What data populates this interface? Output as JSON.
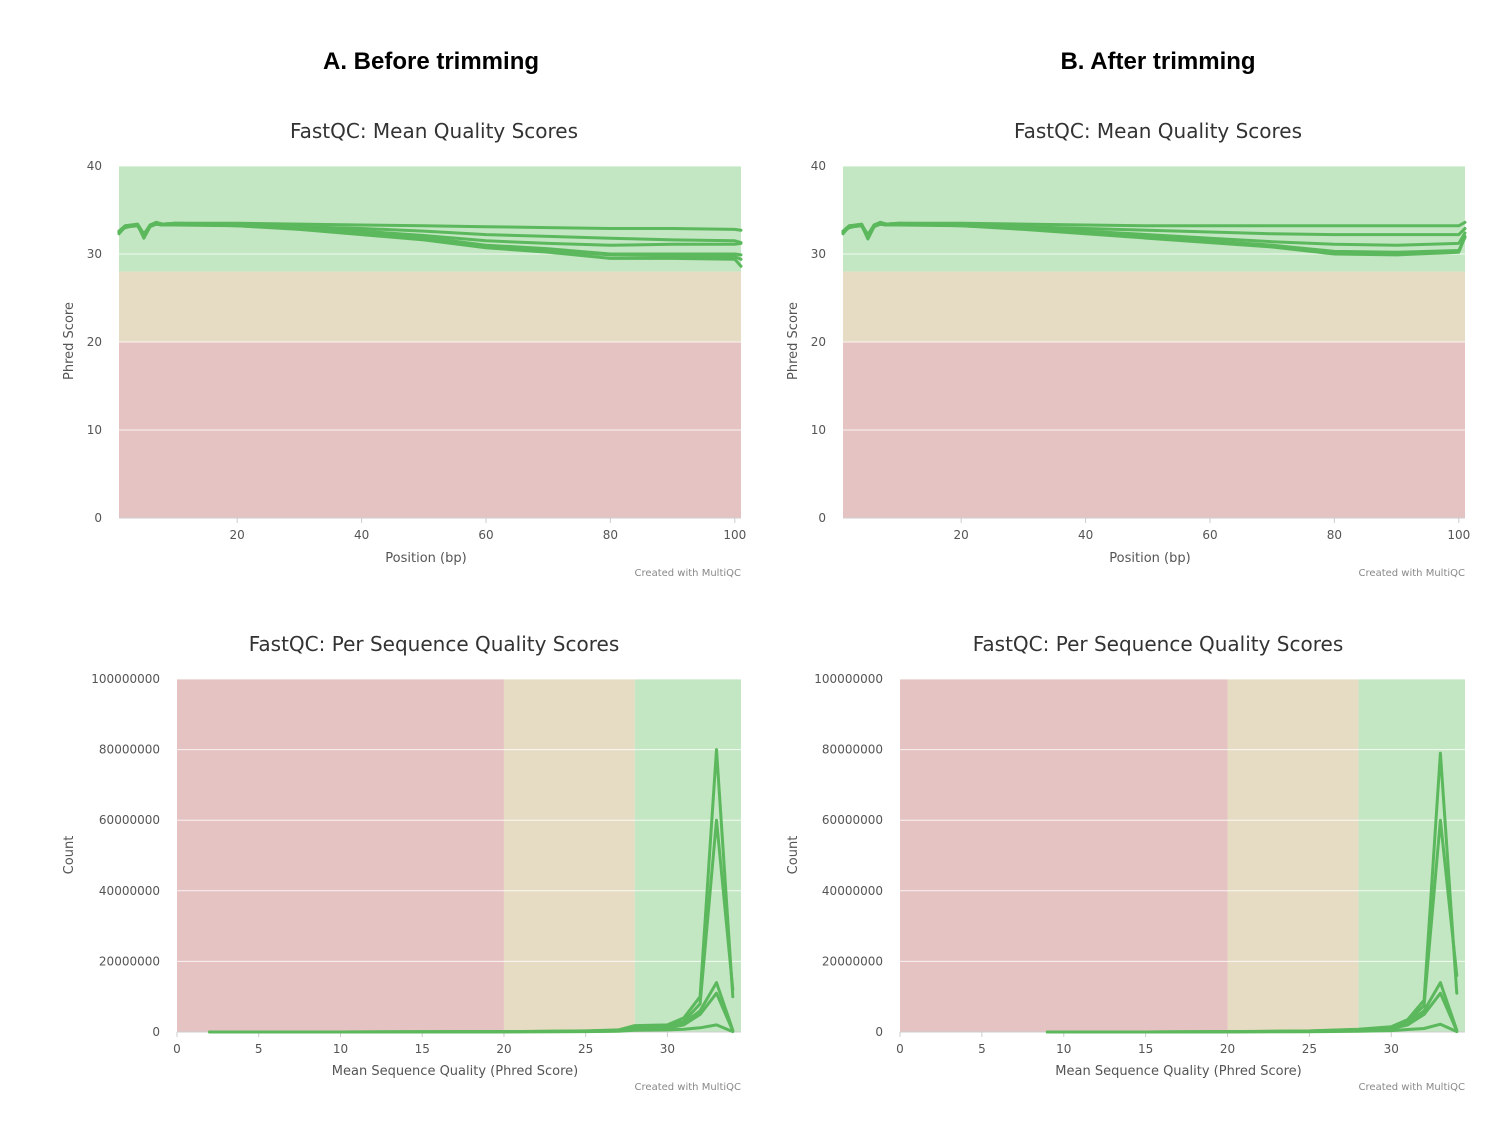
{
  "headings": {
    "a": "A. Before trimming",
    "b": "B. After trimming"
  },
  "colors": {
    "good": "#c3e6c3",
    "warn": "#e6dcc3",
    "bad": "#e6c3c3",
    "line": "#5cb85c",
    "grid": "#ffffff"
  },
  "credit": "Created with MultiQC",
  "chart_data": [
    {
      "id": "a_mean",
      "type": "line",
      "title": "FastQC: Mean Quality Scores",
      "xlabel": "Position (bp)",
      "ylabel": "Phred Score",
      "xlim": [
        1,
        101
      ],
      "ylim": [
        0,
        40
      ],
      "xticks": [
        "20",
        "40",
        "60",
        "80",
        "100"
      ],
      "yticks": [
        "0",
        "10",
        "20",
        "30",
        "40"
      ],
      "bands": {
        "axis": "y",
        "bad": [
          0,
          20
        ],
        "warn": [
          20,
          28
        ],
        "good": [
          28,
          40
        ]
      },
      "series": [
        {
          "x": [
            1,
            2,
            4,
            5,
            6,
            7,
            8,
            10,
            20,
            30,
            40,
            50,
            60,
            70,
            80,
            90,
            100,
            101
          ],
          "y": [
            32.5,
            33.2,
            33.4,
            32.2,
            33.3,
            33.6,
            33.4,
            33.5,
            33.5,
            33.4,
            33.3,
            33.2,
            33.1,
            33.0,
            32.9,
            32.9,
            32.8,
            32.7
          ]
        },
        {
          "x": [
            1,
            2,
            4,
            5,
            6,
            7,
            8,
            10,
            20,
            30,
            40,
            50,
            60,
            70,
            80,
            90,
            100,
            101
          ],
          "y": [
            32.4,
            33.1,
            33.2,
            32.0,
            33.2,
            33.4,
            33.3,
            33.4,
            33.3,
            33.1,
            32.9,
            32.6,
            32.2,
            32.0,
            31.8,
            31.6,
            31.5,
            31.3
          ]
        },
        {
          "x": [
            1,
            2,
            4,
            5,
            6,
            7,
            8,
            10,
            20,
            30,
            40,
            50,
            60,
            70,
            80,
            90,
            100,
            101
          ],
          "y": [
            32.6,
            33.2,
            33.3,
            32.1,
            33.3,
            33.5,
            33.4,
            33.5,
            33.4,
            33.0,
            32.6,
            32.1,
            31.5,
            31.2,
            31.0,
            31.1,
            31.1,
            31.2
          ]
        },
        {
          "x": [
            1,
            2,
            4,
            5,
            6,
            7,
            8,
            10,
            20,
            30,
            40,
            50,
            60,
            70,
            80,
            90,
            100,
            101
          ],
          "y": [
            32.5,
            33.0,
            33.3,
            31.8,
            33.1,
            33.4,
            33.3,
            33.3,
            33.2,
            32.9,
            32.4,
            31.8,
            30.9,
            30.4,
            29.9,
            29.8,
            29.7,
            29.4
          ]
        },
        {
          "x": [
            1,
            2,
            4,
            5,
            6,
            7,
            8,
            10,
            20,
            30,
            40,
            50,
            60,
            70,
            80,
            90,
            100,
            101
          ],
          "y": [
            32.3,
            33.1,
            33.2,
            32.0,
            33.2,
            33.4,
            33.3,
            33.4,
            33.2,
            32.8,
            32.2,
            31.6,
            30.7,
            30.2,
            29.5,
            29.5,
            29.4,
            28.6
          ]
        },
        {
          "x": [
            1,
            2,
            4,
            5,
            6,
            7,
            8,
            10,
            20,
            30,
            40,
            50,
            60,
            70,
            80,
            90,
            100,
            101
          ],
          "y": [
            32.6,
            33.1,
            33.3,
            32.3,
            33.2,
            33.5,
            33.4,
            33.4,
            33.3,
            32.9,
            32.4,
            31.9,
            31.0,
            30.6,
            30.0,
            30.0,
            30.0,
            29.9
          ]
        }
      ]
    },
    {
      "id": "b_mean",
      "type": "line",
      "title": "FastQC: Mean Quality Scores",
      "xlabel": "Position (bp)",
      "ylabel": "Phred Score",
      "xlim": [
        1,
        101
      ],
      "ylim": [
        0,
        40
      ],
      "xticks": [
        "20",
        "40",
        "60",
        "80",
        "100"
      ],
      "yticks": [
        "0",
        "10",
        "20",
        "30",
        "40"
      ],
      "bands": {
        "axis": "y",
        "bad": [
          0,
          20
        ],
        "warn": [
          20,
          28
        ],
        "good": [
          28,
          40
        ]
      },
      "series": [
        {
          "x": [
            1,
            2,
            4,
            5,
            6,
            7,
            8,
            10,
            20,
            30,
            40,
            50,
            60,
            70,
            80,
            90,
            100,
            101
          ],
          "y": [
            32.5,
            33.2,
            33.4,
            32.0,
            33.3,
            33.6,
            33.4,
            33.5,
            33.5,
            33.4,
            33.3,
            33.2,
            33.2,
            33.2,
            33.2,
            33.2,
            33.2,
            33.6
          ]
        },
        {
          "x": [
            1,
            2,
            4,
            5,
            6,
            7,
            8,
            10,
            20,
            30,
            40,
            50,
            60,
            70,
            80,
            90,
            100,
            101
          ],
          "y": [
            32.4,
            33.1,
            33.2,
            31.8,
            33.2,
            33.4,
            33.3,
            33.4,
            33.3,
            33.1,
            32.9,
            32.7,
            32.5,
            32.3,
            32.2,
            32.2,
            32.2,
            32.9
          ]
        },
        {
          "x": [
            1,
            2,
            4,
            5,
            6,
            7,
            8,
            10,
            20,
            30,
            40,
            50,
            60,
            70,
            80,
            90,
            100,
            101
          ],
          "y": [
            32.6,
            33.2,
            33.3,
            32.2,
            33.3,
            33.5,
            33.4,
            33.5,
            33.4,
            33.0,
            32.6,
            32.2,
            31.8,
            31.4,
            31.1,
            31.0,
            31.2,
            32.4
          ]
        },
        {
          "x": [
            1,
            2,
            4,
            5,
            6,
            7,
            8,
            10,
            20,
            30,
            40,
            50,
            60,
            70,
            80,
            90,
            100,
            101
          ],
          "y": [
            32.5,
            33.0,
            33.3,
            31.7,
            33.1,
            33.4,
            33.3,
            33.3,
            33.2,
            32.9,
            32.5,
            32.0,
            31.5,
            31.0,
            30.3,
            30.2,
            30.4,
            31.9
          ]
        },
        {
          "x": [
            1,
            2,
            4,
            5,
            6,
            7,
            8,
            10,
            20,
            30,
            40,
            50,
            60,
            70,
            80,
            90,
            100,
            101
          ],
          "y": [
            32.3,
            33.1,
            33.2,
            32.0,
            33.2,
            33.4,
            33.3,
            33.4,
            33.2,
            32.8,
            32.3,
            31.8,
            31.3,
            30.8,
            30.0,
            29.9,
            30.2,
            32.0
          ]
        }
      ]
    },
    {
      "id": "a_perseq",
      "type": "line",
      "title": "FastQC: Per Sequence Quality Scores",
      "xlabel": "Mean Sequence Quality (Phred Score)",
      "ylabel": "Count",
      "xlim": [
        0,
        34.5
      ],
      "ylim": [
        0,
        100000000
      ],
      "xticks": [
        "0",
        "5",
        "10",
        "15",
        "20",
        "25",
        "30"
      ],
      "yticks": [
        "0",
        "20000000",
        "40000000",
        "60000000",
        "80000000",
        "100000000"
      ],
      "bands": {
        "axis": "x",
        "bad": [
          0,
          20
        ],
        "warn": [
          20,
          28
        ],
        "good": [
          28,
          34.5
        ]
      },
      "series": [
        {
          "x": [
            2,
            10,
            20,
            25,
            27,
            28,
            30,
            31,
            32,
            33,
            34
          ],
          "y": [
            0,
            0,
            100000,
            300000,
            600000,
            1800000,
            2000000,
            4000000,
            10000000,
            80000000,
            10000000
          ]
        },
        {
          "x": [
            2,
            10,
            20,
            25,
            27,
            28,
            30,
            31,
            32,
            33,
            34
          ],
          "y": [
            0,
            0,
            100000,
            250000,
            500000,
            1500000,
            1800000,
            3000000,
            8000000,
            60000000,
            12000000
          ]
        },
        {
          "x": [
            2,
            10,
            20,
            25,
            27,
            28,
            30,
            31,
            32,
            33,
            34
          ],
          "y": [
            0,
            0,
            80000,
            200000,
            400000,
            1200000,
            1500000,
            2500000,
            6000000,
            14000000,
            500000
          ]
        },
        {
          "x": [
            2,
            10,
            20,
            25,
            27,
            28,
            30,
            31,
            32,
            33,
            34
          ],
          "y": [
            0,
            0,
            60000,
            150000,
            300000,
            900000,
            1100000,
            2000000,
            5000000,
            11000000,
            300000
          ]
        },
        {
          "x": [
            2,
            10,
            20,
            25,
            27,
            28,
            30,
            31,
            32,
            33,
            34
          ],
          "y": [
            0,
            0,
            40000,
            100000,
            200000,
            500000,
            600000,
            800000,
            1200000,
            2000000,
            100000
          ]
        }
      ]
    },
    {
      "id": "b_perseq",
      "type": "line",
      "title": "FastQC: Per Sequence Quality Scores",
      "xlabel": "Mean Sequence Quality (Phred Score)",
      "ylabel": "Count",
      "xlim": [
        0,
        34.5
      ],
      "ylim": [
        0,
        100000000
      ],
      "xticks": [
        "0",
        "5",
        "10",
        "15",
        "20",
        "25",
        "30"
      ],
      "yticks": [
        "0",
        "20000000",
        "40000000",
        "60000000",
        "80000000",
        "100000000"
      ],
      "bands": {
        "axis": "x",
        "bad": [
          0,
          20
        ],
        "warn": [
          20,
          28
        ],
        "good": [
          28,
          34.5
        ]
      },
      "series": [
        {
          "x": [
            9,
            15,
            20,
            25,
            28,
            30,
            31,
            32,
            33,
            34
          ],
          "y": [
            0,
            0,
            100000,
            300000,
            800000,
            1500000,
            3500000,
            9000000,
            79000000,
            11000000
          ]
        },
        {
          "x": [
            9,
            15,
            20,
            25,
            28,
            30,
            31,
            32,
            33,
            34
          ],
          "y": [
            0,
            0,
            80000,
            250000,
            700000,
            1300000,
            3000000,
            7500000,
            60000000,
            16000000
          ]
        },
        {
          "x": [
            9,
            15,
            20,
            25,
            28,
            30,
            31,
            32,
            33,
            34
          ],
          "y": [
            0,
            0,
            60000,
            200000,
            500000,
            1100000,
            2500000,
            6000000,
            14000000,
            500000
          ]
        },
        {
          "x": [
            9,
            15,
            20,
            25,
            28,
            30,
            31,
            32,
            33,
            34
          ],
          "y": [
            0,
            0,
            50000,
            150000,
            400000,
            900000,
            2000000,
            5000000,
            11000000,
            300000
          ]
        },
        {
          "x": [
            9,
            15,
            20,
            25,
            28,
            30,
            31,
            32,
            33,
            34
          ],
          "y": [
            0,
            0,
            30000,
            80000,
            200000,
            400000,
            700000,
            1000000,
            2200000,
            100000
          ]
        }
      ]
    }
  ]
}
